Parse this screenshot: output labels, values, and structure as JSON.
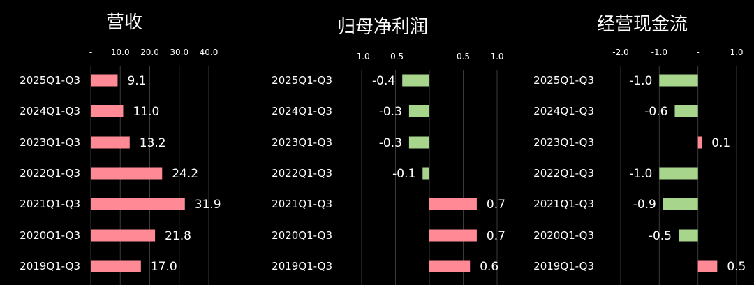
{
  "chart_data": [
    {
      "type": "bar",
      "orientation": "horizontal",
      "title": "营收",
      "categories": [
        "2025Q1-Q3",
        "2024Q1-Q3",
        "2023Q1-Q3",
        "2022Q1-Q3",
        "2021Q1-Q3",
        "2020Q1-Q3",
        "2019Q1-Q3"
      ],
      "values": [
        9.1,
        11.0,
        13.2,
        24.2,
        31.9,
        21.8,
        17.0
      ],
      "value_labels": [
        "9.1",
        "11.0",
        "13.2",
        "24.2",
        "31.9",
        "21.8",
        "17.0"
      ],
      "xlim": [
        0,
        40
      ],
      "ticks": [
        0,
        10,
        20,
        30,
        40
      ],
      "tick_labels": [
        "-",
        "10.0",
        "20.0",
        "30.0",
        "40.0"
      ],
      "grid": true
    },
    {
      "type": "bar",
      "orientation": "horizontal",
      "title": "归母净利润",
      "categories": [
        "2025Q1-Q3",
        "2024Q1-Q3",
        "2023Q1-Q3",
        "2022Q1-Q3",
        "2021Q1-Q3",
        "2020Q1-Q3",
        "2019Q1-Q3"
      ],
      "values": [
        -0.4,
        -0.3,
        -0.3,
        -0.1,
        0.7,
        0.7,
        0.6
      ],
      "value_labels": [
        "-0.4",
        "-0.3",
        "-0.3",
        "-0.1",
        "0.7",
        "0.7",
        "0.6"
      ],
      "xlim": [
        -1.0,
        1.0
      ],
      "ticks": [
        -1.0,
        -0.5,
        0,
        0.5,
        1.0
      ],
      "tick_labels": [
        "-1.0",
        "-0.5",
        "-",
        "0.5",
        "1.0"
      ],
      "grid": true
    },
    {
      "type": "bar",
      "orientation": "horizontal",
      "title": "经营现金流",
      "categories": [
        "2025Q1-Q3",
        "2024Q1-Q3",
        "2023Q1-Q3",
        "2022Q1-Q3",
        "2021Q1-Q3",
        "2020Q1-Q3",
        "2019Q1-Q3"
      ],
      "values": [
        -1.0,
        -0.6,
        0.1,
        -1.0,
        -0.9,
        -0.5,
        0.5
      ],
      "value_labels": [
        "-1.0",
        "-0.6",
        "0.1",
        "-1.0",
        "-0.9",
        "-0.5",
        "0.5"
      ],
      "xlim": [
        -2.0,
        1.0
      ],
      "ticks": [
        -2.0,
        -1.0,
        0,
        1.0
      ],
      "tick_labels": [
        "-2.0",
        "-1.0",
        "-",
        "1.0"
      ],
      "grid": true
    }
  ],
  "colors": {
    "positive": "#ff8a96",
    "negative": "#a8d58c",
    "background": "#000000",
    "text": "#ffffff",
    "grid": "#3a3a3a"
  }
}
